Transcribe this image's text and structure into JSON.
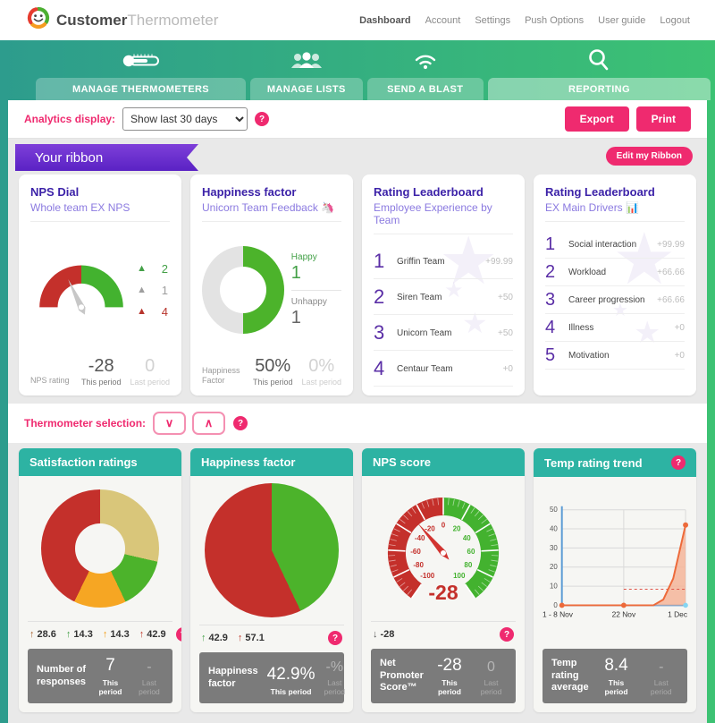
{
  "colors": {
    "accent_pink": "#ef2a6f",
    "teal": "#2db3a3",
    "band_left": "#2d9c8d",
    "band_right": "#3cc273",
    "purple_title": "#3c22a8",
    "purple_sub": "#8b7ae0"
  },
  "icons": {
    "help": "?"
  },
  "header": {
    "brand": {
      "first": "Customer",
      "second": "Thermometer"
    },
    "nav": [
      {
        "label": "Dashboard",
        "active": true
      },
      {
        "label": "Account"
      },
      {
        "label": "Settings"
      },
      {
        "label": "Push Options"
      },
      {
        "label": "User guide"
      },
      {
        "label": "Logout"
      }
    ]
  },
  "tabs": [
    {
      "label": "MANAGE THERMOMETERS",
      "icon": "thermometer-icon"
    },
    {
      "label": "MANAGE LISTS",
      "icon": "people-icon"
    },
    {
      "label": "SEND A BLAST",
      "icon": "wifi-icon"
    },
    {
      "label": "REPORTING",
      "icon": "search-icon",
      "active": true
    }
  ],
  "analytics_bar": {
    "label": "Analytics display:",
    "select_value": "Show last 30 days",
    "export_label": "Export",
    "print_label": "Print"
  },
  "ribbon": {
    "banner": "Your ribbon",
    "edit_button": "Edit my Ribbon"
  },
  "ribbon_cards": {
    "nps_dial": {
      "title": "NPS Dial",
      "subtitle": "Whole team EX NPS",
      "legend": [
        {
          "shape": "triangle-up",
          "color": "#43a047",
          "value": "2"
        },
        {
          "shape": "triangle-up",
          "color": "#9e9e9e",
          "value": "1"
        },
        {
          "shape": "triangle-up",
          "color": "#b7342c",
          "value": "4"
        }
      ],
      "footer_label": "NPS rating",
      "this_value": "-28",
      "this_label": "This period",
      "last_value": "0",
      "last_label": "Last period",
      "chart_data": {
        "type": "gauge",
        "min": -100,
        "max": 100,
        "value": -28,
        "segments": [
          {
            "from": -100,
            "to": 0,
            "color": "#c4302b"
          },
          {
            "from": 0,
            "to": 100,
            "color": "#43b22f"
          }
        ]
      }
    },
    "happiness": {
      "title": "Happiness factor",
      "subtitle": "Unicorn Team Feedback 🦄",
      "happy_label": "Happy",
      "happy_value": "1",
      "unhappy_label": "Unhappy",
      "unhappy_value": "1",
      "footer_label": "Happiness Factor",
      "this_value": "50%",
      "this_label": "This period",
      "last_value": "0%",
      "last_label": "Last period",
      "chart_data": {
        "type": "pie",
        "hole": true,
        "labels": [
          "Happy",
          "Remaining"
        ],
        "values": [
          50,
          50
        ],
        "colors": [
          "#4cb32b",
          "#e3e3e3"
        ]
      }
    },
    "leaderboard_team": {
      "title": "Rating Leaderboard",
      "subtitle": "Employee Experience by Team",
      "rows": [
        {
          "rank": "1",
          "name": "Griffin Team",
          "score": "+99.99"
        },
        {
          "rank": "2",
          "name": "Siren Team",
          "score": "+50"
        },
        {
          "rank": "3",
          "name": "Unicorn Team",
          "score": "+50"
        },
        {
          "rank": "4",
          "name": "Centaur Team",
          "score": "+0"
        }
      ]
    },
    "leaderboard_drivers": {
      "title": "Rating Leaderboard",
      "subtitle": "EX Main Drivers 📊",
      "rows": [
        {
          "rank": "1",
          "name": "Social interaction",
          "score": "+99.99"
        },
        {
          "rank": "2",
          "name": "Workload",
          "score": "+66.66"
        },
        {
          "rank": "3",
          "name": "Career progression",
          "score": "+66.66"
        },
        {
          "rank": "4",
          "name": "Illness",
          "score": "+0"
        },
        {
          "rank": "5",
          "name": "Motivation",
          "score": "+0"
        }
      ]
    }
  },
  "selection_bar": {
    "label": "Thermometer selection:",
    "down_icon": "∨",
    "up_icon": "∧"
  },
  "report_cards": {
    "satisfaction": {
      "title": "Satisfaction ratings",
      "stats": [
        {
          "arrow": "↑",
          "value": "28.6",
          "color": "#a8622d"
        },
        {
          "arrow": "↑",
          "value": "14.3",
          "color": "#43a047"
        },
        {
          "arrow": "↑",
          "value": "14.3",
          "color": "#f39c12"
        },
        {
          "arrow": "↑",
          "value": "42.9",
          "color": "#c0392b"
        }
      ],
      "footer_label": "Number of responses",
      "this_value": "7",
      "this_label": "This period",
      "last_value": "-",
      "last_label": "Last period",
      "chart_data": {
        "type": "pie",
        "hole": true,
        "labels": [
          "Gold",
          "Green",
          "Orange",
          "Red"
        ],
        "values": [
          28.6,
          14.3,
          14.3,
          42.9
        ],
        "colors": [
          "#d9c67a",
          "#4cb32b",
          "#f6a623",
          "#c4302b"
        ]
      }
    },
    "happiness": {
      "title": "Happiness factor",
      "stats": [
        {
          "arrow": "↑",
          "value": "42.9",
          "color": "#43a047"
        },
        {
          "arrow": "↑",
          "value": "57.1",
          "color": "#c0392b"
        }
      ],
      "footer_label": "Happiness factor",
      "this_value": "42.9%",
      "this_label": "This period",
      "last_value": "-%",
      "last_label": "Last period",
      "chart_data": {
        "type": "pie",
        "hole": false,
        "labels": [
          "Happy",
          "Unhappy"
        ],
        "values": [
          42.9,
          57.1
        ],
        "colors": [
          "#4cb32b",
          "#c4302b"
        ]
      }
    },
    "nps": {
      "title": "NPS score",
      "stats": [
        {
          "arrow": "↓",
          "value": "-28",
          "color": "#555555"
        }
      ],
      "footer_label": "Net Promoter Score™",
      "this_value": "-28",
      "this_label": "This period",
      "last_value": "0",
      "last_label": "Last period",
      "chart_data": {
        "type": "gauge",
        "min": -100,
        "max": 100,
        "value": -28,
        "value_label": "-28",
        "tick_step": 20,
        "neg_color": "#c4302b",
        "pos_color": "#43b22f"
      }
    },
    "trend": {
      "title": "Temp rating trend",
      "footer_label": "Temp rating average",
      "this_value": "8.4",
      "this_label": "This period",
      "last_value": "-",
      "last_label": "Last period",
      "chart_data": {
        "type": "area",
        "x_labels": [
          "1 - 8 Nov",
          "22 Nov",
          "1 Dec"
        ],
        "ylim": [
          0,
          50
        ],
        "yticks": [
          0,
          10,
          20,
          30,
          40,
          50
        ],
        "points": [
          {
            "x": 0,
            "y": 0
          },
          {
            "x": 0.5,
            "y": 0
          },
          {
            "x": 0.74,
            "y": 0
          },
          {
            "x": 0.82,
            "y": 3
          },
          {
            "x": 0.9,
            "y": 14
          },
          {
            "x": 1,
            "y": 42
          }
        ],
        "markers": [
          {
            "x": 0,
            "y": 0
          },
          {
            "x": 0.5,
            "y": 0
          },
          {
            "x": 1,
            "y": 42
          }
        ],
        "average": 8.4,
        "line_color": "#ed6a3a",
        "fill_color": "#f5b193",
        "axis_color": "#5b9bd5",
        "grid_color": "#d9d9d9",
        "avg_line_color": "#e0564b"
      }
    }
  }
}
